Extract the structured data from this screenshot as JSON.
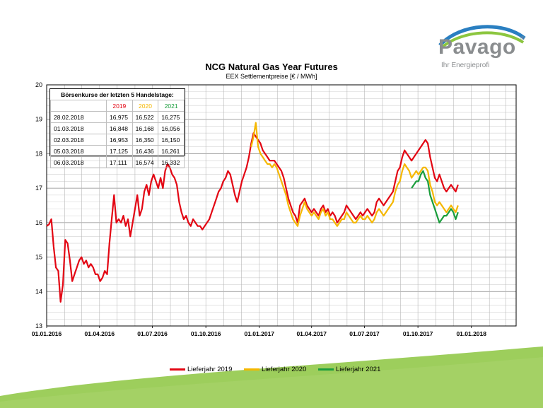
{
  "logo": {
    "word": "Pavago",
    "reg": "®",
    "tagline": "Ihr Energieprofi"
  },
  "chart_data": {
    "type": "line",
    "title": "NCG Natural Gas Year Futures",
    "subtitle": "EEX Settlementpreise [€ / MWh]",
    "ylim": [
      13,
      20
    ],
    "yticks": [
      "13",
      "14",
      "15",
      "16",
      "17",
      "18",
      "19",
      "20"
    ],
    "xlim": [
      0,
      808
    ],
    "xticks": [
      {
        "label": "01.01.2016",
        "t": 0
      },
      {
        "label": "01.04.2016",
        "t": 91
      },
      {
        "label": "01.07.2016",
        "t": 182
      },
      {
        "label": "01.10.2016",
        "t": 274
      },
      {
        "label": "01.01.2017",
        "t": 366
      },
      {
        "label": "01.04.2017",
        "t": 456
      },
      {
        "label": "01.07.2017",
        "t": 547
      },
      {
        "label": "01.10.2017",
        "t": 639
      },
      {
        "label": "01.01.2018",
        "t": 731
      }
    ],
    "grid": true,
    "legend_position": "bottom",
    "series": [
      {
        "name": "Lieferjahr 2019",
        "color": "#e30613",
        "points": [
          [
            0,
            15.9
          ],
          [
            4,
            15.95
          ],
          [
            8,
            16.1
          ],
          [
            12,
            15.3
          ],
          [
            16,
            14.7
          ],
          [
            20,
            14.6
          ],
          [
            24,
            13.7
          ],
          [
            28,
            14.2
          ],
          [
            32,
            15.5
          ],
          [
            36,
            15.4
          ],
          [
            40,
            14.9
          ],
          [
            44,
            14.3
          ],
          [
            48,
            14.5
          ],
          [
            52,
            14.7
          ],
          [
            56,
            14.9
          ],
          [
            60,
            15.0
          ],
          [
            64,
            14.8
          ],
          [
            68,
            14.9
          ],
          [
            72,
            14.7
          ],
          [
            76,
            14.8
          ],
          [
            80,
            14.7
          ],
          [
            84,
            14.5
          ],
          [
            88,
            14.5
          ],
          [
            92,
            14.3
          ],
          [
            96,
            14.4
          ],
          [
            100,
            14.6
          ],
          [
            104,
            14.5
          ],
          [
            108,
            15.4
          ],
          [
            112,
            16.1
          ],
          [
            116,
            16.8
          ],
          [
            120,
            16.0
          ],
          [
            124,
            16.1
          ],
          [
            128,
            16.0
          ],
          [
            132,
            16.2
          ],
          [
            136,
            15.9
          ],
          [
            140,
            16.1
          ],
          [
            144,
            15.6
          ],
          [
            148,
            16.0
          ],
          [
            152,
            16.4
          ],
          [
            156,
            16.8
          ],
          [
            160,
            16.2
          ],
          [
            164,
            16.4
          ],
          [
            168,
            16.9
          ],
          [
            172,
            17.1
          ],
          [
            176,
            16.8
          ],
          [
            180,
            17.2
          ],
          [
            184,
            17.4
          ],
          [
            188,
            17.2
          ],
          [
            192,
            17.0
          ],
          [
            196,
            17.3
          ],
          [
            200,
            17.0
          ],
          [
            204,
            17.5
          ],
          [
            208,
            17.7
          ],
          [
            212,
            17.6
          ],
          [
            216,
            17.4
          ],
          [
            220,
            17.3
          ],
          [
            224,
            17.1
          ],
          [
            228,
            16.6
          ],
          [
            232,
            16.3
          ],
          [
            236,
            16.1
          ],
          [
            240,
            16.2
          ],
          [
            244,
            16.0
          ],
          [
            248,
            15.9
          ],
          [
            252,
            16.1
          ],
          [
            256,
            16.0
          ],
          [
            260,
            15.9
          ],
          [
            264,
            15.9
          ],
          [
            268,
            15.8
          ],
          [
            272,
            15.9
          ],
          [
            276,
            16.0
          ],
          [
            280,
            16.1
          ],
          [
            284,
            16.3
          ],
          [
            288,
            16.5
          ],
          [
            292,
            16.7
          ],
          [
            296,
            16.9
          ],
          [
            300,
            17.0
          ],
          [
            304,
            17.2
          ],
          [
            308,
            17.3
          ],
          [
            312,
            17.5
          ],
          [
            316,
            17.4
          ],
          [
            320,
            17.1
          ],
          [
            324,
            16.8
          ],
          [
            328,
            16.6
          ],
          [
            332,
            16.9
          ],
          [
            336,
            17.2
          ],
          [
            340,
            17.4
          ],
          [
            344,
            17.6
          ],
          [
            348,
            17.9
          ],
          [
            352,
            18.3
          ],
          [
            356,
            18.6
          ],
          [
            360,
            18.5
          ],
          [
            364,
            18.4
          ],
          [
            368,
            18.3
          ],
          [
            372,
            18.1
          ],
          [
            376,
            18.0
          ],
          [
            380,
            17.9
          ],
          [
            384,
            17.8
          ],
          [
            388,
            17.8
          ],
          [
            392,
            17.8
          ],
          [
            396,
            17.7
          ],
          [
            400,
            17.6
          ],
          [
            404,
            17.5
          ],
          [
            408,
            17.3
          ],
          [
            412,
            17.0
          ],
          [
            416,
            16.7
          ],
          [
            420,
            16.5
          ],
          [
            424,
            16.3
          ],
          [
            428,
            16.2
          ],
          [
            432,
            16.0
          ],
          [
            436,
            16.5
          ],
          [
            440,
            16.6
          ],
          [
            444,
            16.7
          ],
          [
            448,
            16.5
          ],
          [
            452,
            16.4
          ],
          [
            456,
            16.3
          ],
          [
            460,
            16.4
          ],
          [
            464,
            16.3
          ],
          [
            468,
            16.2
          ],
          [
            472,
            16.4
          ],
          [
            476,
            16.5
          ],
          [
            480,
            16.3
          ],
          [
            484,
            16.4
          ],
          [
            488,
            16.2
          ],
          [
            492,
            16.3
          ],
          [
            496,
            16.2
          ],
          [
            500,
            16.0
          ],
          [
            504,
            16.1
          ],
          [
            508,
            16.2
          ],
          [
            512,
            16.3
          ],
          [
            516,
            16.5
          ],
          [
            520,
            16.4
          ],
          [
            524,
            16.3
          ],
          [
            528,
            16.2
          ],
          [
            532,
            16.1
          ],
          [
            536,
            16.2
          ],
          [
            540,
            16.3
          ],
          [
            544,
            16.2
          ],
          [
            548,
            16.3
          ],
          [
            552,
            16.4
          ],
          [
            556,
            16.3
          ],
          [
            560,
            16.2
          ],
          [
            564,
            16.3
          ],
          [
            568,
            16.6
          ],
          [
            572,
            16.7
          ],
          [
            576,
            16.6
          ],
          [
            580,
            16.5
          ],
          [
            584,
            16.6
          ],
          [
            588,
            16.7
          ],
          [
            592,
            16.8
          ],
          [
            596,
            16.9
          ],
          [
            600,
            17.2
          ],
          [
            604,
            17.5
          ],
          [
            608,
            17.6
          ],
          [
            612,
            17.9
          ],
          [
            616,
            18.1
          ],
          [
            620,
            18.0
          ],
          [
            624,
            17.9
          ],
          [
            628,
            17.8
          ],
          [
            632,
            17.9
          ],
          [
            636,
            18.0
          ],
          [
            640,
            18.1
          ],
          [
            644,
            18.2
          ],
          [
            648,
            18.3
          ],
          [
            652,
            18.4
          ],
          [
            656,
            18.3
          ],
          [
            660,
            17.9
          ],
          [
            664,
            17.6
          ],
          [
            668,
            17.3
          ],
          [
            672,
            17.2
          ],
          [
            676,
            17.4
          ],
          [
            680,
            17.2
          ],
          [
            684,
            17.0
          ],
          [
            688,
            16.9
          ],
          [
            692,
            17.0
          ],
          [
            696,
            17.1
          ],
          [
            700,
            17.0
          ],
          [
            704,
            16.9
          ],
          [
            708,
            17.1
          ]
        ]
      },
      {
        "name": "Lieferjahr 2020",
        "color": "#f5b700",
        "points": [
          [
            352,
            18.2
          ],
          [
            356,
            18.5
          ],
          [
            360,
            18.9
          ],
          [
            364,
            18.2
          ],
          [
            368,
            18.0
          ],
          [
            372,
            17.9
          ],
          [
            376,
            17.8
          ],
          [
            380,
            17.7
          ],
          [
            384,
            17.7
          ],
          [
            388,
            17.6
          ],
          [
            392,
            17.7
          ],
          [
            396,
            17.6
          ],
          [
            400,
            17.4
          ],
          [
            404,
            17.2
          ],
          [
            408,
            17.0
          ],
          [
            412,
            16.8
          ],
          [
            416,
            16.5
          ],
          [
            420,
            16.3
          ],
          [
            424,
            16.1
          ],
          [
            428,
            16.0
          ],
          [
            432,
            15.9
          ],
          [
            436,
            16.2
          ],
          [
            440,
            16.4
          ],
          [
            444,
            16.6
          ],
          [
            448,
            16.4
          ],
          [
            452,
            16.3
          ],
          [
            456,
            16.2
          ],
          [
            460,
            16.3
          ],
          [
            464,
            16.2
          ],
          [
            468,
            16.1
          ],
          [
            472,
            16.3
          ],
          [
            476,
            16.4
          ],
          [
            480,
            16.2
          ],
          [
            484,
            16.3
          ],
          [
            488,
            16.1
          ],
          [
            492,
            16.1
          ],
          [
            496,
            16.0
          ],
          [
            500,
            15.9
          ],
          [
            504,
            16.0
          ],
          [
            508,
            16.1
          ],
          [
            512,
            16.1
          ],
          [
            516,
            16.3
          ],
          [
            520,
            16.2
          ],
          [
            524,
            16.1
          ],
          [
            528,
            16.0
          ],
          [
            532,
            16.0
          ],
          [
            536,
            16.1
          ],
          [
            540,
            16.2
          ],
          [
            544,
            16.1
          ],
          [
            548,
            16.1
          ],
          [
            552,
            16.2
          ],
          [
            556,
            16.1
          ],
          [
            560,
            16.0
          ],
          [
            564,
            16.1
          ],
          [
            568,
            16.3
          ],
          [
            572,
            16.4
          ],
          [
            576,
            16.3
          ],
          [
            580,
            16.2
          ],
          [
            584,
            16.3
          ],
          [
            588,
            16.4
          ],
          [
            592,
            16.5
          ],
          [
            596,
            16.6
          ],
          [
            600,
            16.9
          ],
          [
            604,
            17.1
          ],
          [
            608,
            17.2
          ],
          [
            612,
            17.5
          ],
          [
            616,
            17.7
          ],
          [
            620,
            17.6
          ],
          [
            624,
            17.5
          ],
          [
            628,
            17.3
          ],
          [
            632,
            17.4
          ],
          [
            636,
            17.5
          ],
          [
            640,
            17.4
          ],
          [
            644,
            17.5
          ],
          [
            648,
            17.6
          ],
          [
            652,
            17.6
          ],
          [
            656,
            17.5
          ],
          [
            660,
            17.1
          ],
          [
            664,
            16.9
          ],
          [
            668,
            16.6
          ],
          [
            672,
            16.5
          ],
          [
            676,
            16.6
          ],
          [
            680,
            16.5
          ],
          [
            684,
            16.4
          ],
          [
            688,
            16.3
          ],
          [
            692,
            16.4
          ],
          [
            696,
            16.5
          ],
          [
            700,
            16.4
          ],
          [
            704,
            16.3
          ],
          [
            708,
            16.5
          ]
        ]
      },
      {
        "name": "Lieferjahr 2021",
        "color": "#1a9d3c",
        "points": [
          [
            628,
            17.0
          ],
          [
            632,
            17.1
          ],
          [
            636,
            17.2
          ],
          [
            640,
            17.2
          ],
          [
            644,
            17.4
          ],
          [
            648,
            17.5
          ],
          [
            652,
            17.3
          ],
          [
            656,
            17.2
          ],
          [
            660,
            16.8
          ],
          [
            664,
            16.6
          ],
          [
            668,
            16.4
          ],
          [
            672,
            16.2
          ],
          [
            676,
            16.0
          ],
          [
            680,
            16.1
          ],
          [
            684,
            16.2
          ],
          [
            688,
            16.2
          ],
          [
            692,
            16.3
          ],
          [
            696,
            16.4
          ],
          [
            700,
            16.3
          ],
          [
            704,
            16.1
          ],
          [
            708,
            16.3
          ]
        ]
      }
    ],
    "table": {
      "title": "Börsenkurse der letzten 5 Handelstage:",
      "columns": [
        "",
        "2019",
        "2020",
        "2021"
      ],
      "rows": [
        [
          "28.02.2018",
          "16,975",
          "16,522",
          "16,275"
        ],
        [
          "01.03.2018",
          "16,848",
          "16,168",
          "16,056"
        ],
        [
          "02.03.2018",
          "16,953",
          "16,350",
          "16,150"
        ],
        [
          "05.03.2018",
          "17,125",
          "16,436",
          "16,261"
        ],
        [
          "06.03.2018",
          "17,111",
          "16,574",
          "16,332"
        ]
      ]
    }
  }
}
